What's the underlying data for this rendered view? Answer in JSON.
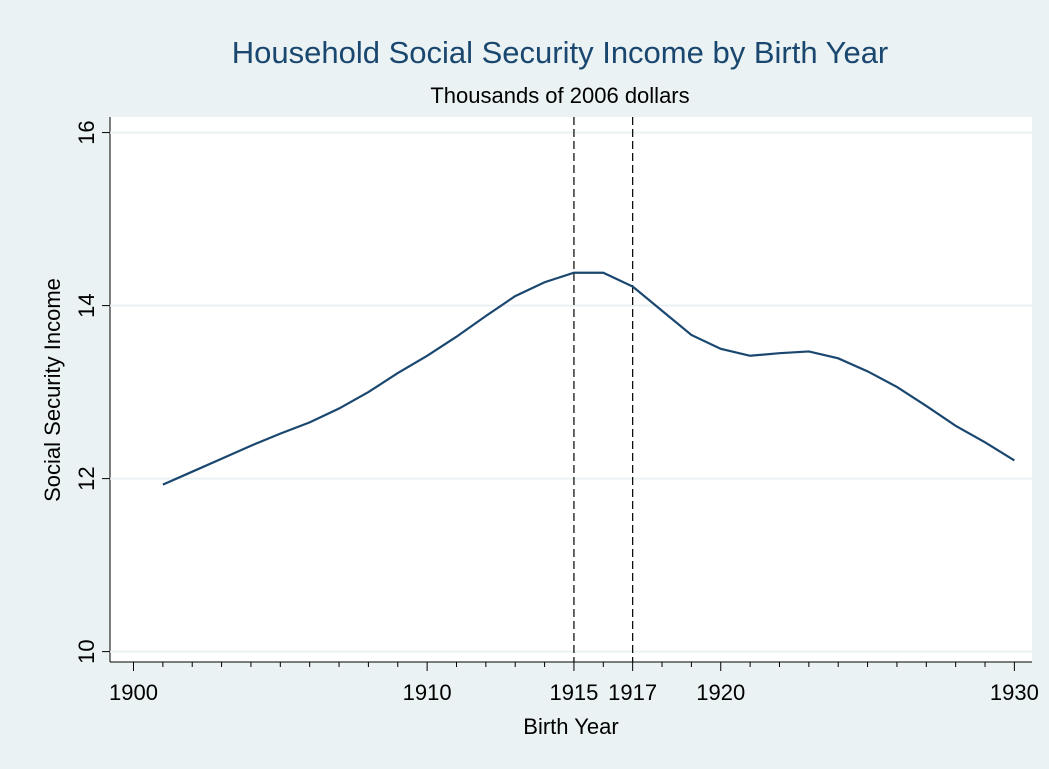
{
  "chart_data": {
    "type": "line",
    "title": "Household Social Security Income by Birth Year",
    "subtitle": "Thousands of 2006 dollars",
    "x_label": "Birth Year",
    "y_label": "Social Security Income",
    "x": [
      1901,
      1902,
      1903,
      1904,
      1905,
      1906,
      1907,
      1908,
      1909,
      1910,
      1911,
      1912,
      1913,
      1914,
      1915,
      1916,
      1917,
      1918,
      1919,
      1920,
      1921,
      1922,
      1923,
      1924,
      1925,
      1926,
      1927,
      1928,
      1929,
      1930
    ],
    "series": [
      {
        "color": "#1a476f",
        "values": [
          11.93,
          12.08,
          12.23,
          12.38,
          12.52,
          12.65,
          12.81,
          13.0,
          13.22,
          13.42,
          13.64,
          13.88,
          14.11,
          14.27,
          14.38,
          14.38,
          14.22,
          13.94,
          13.66,
          13.5,
          13.42,
          13.45,
          13.47,
          13.39,
          13.24,
          13.06,
          12.84,
          12.61,
          12.42,
          12.21
        ]
      }
    ],
    "xlim": [
      1899.2,
      1930.6
    ],
    "ylim": [
      9.88,
      16.18
    ],
    "xticks": [
      1900,
      1910,
      1915,
      1917,
      1920,
      1930
    ],
    "xminorticks": [
      1901,
      1902,
      1903,
      1904,
      1905,
      1906,
      1907,
      1908,
      1909,
      1911,
      1912,
      1913,
      1914,
      1916,
      1918,
      1919,
      1921,
      1922,
      1923,
      1924,
      1925,
      1926,
      1927,
      1928,
      1929
    ],
    "yticks": [
      10,
      12,
      14,
      16
    ],
    "xlines": [
      1915,
      1917
    ],
    "grid": true
  }
}
